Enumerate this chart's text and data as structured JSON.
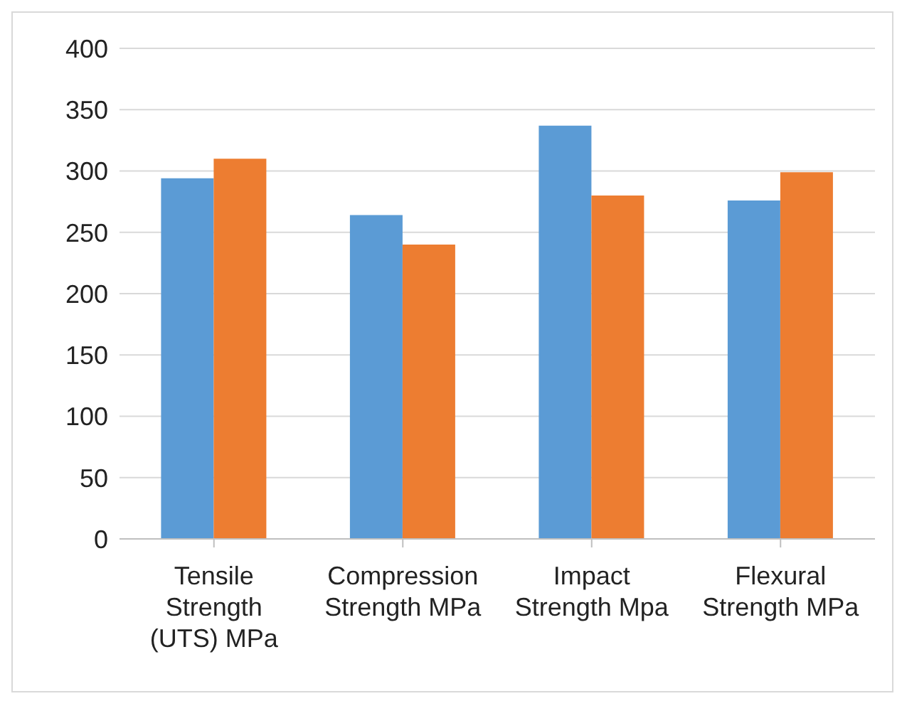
{
  "chart_data": {
    "type": "bar",
    "categories": [
      "Tensile Strength (UTS) MPa",
      "Compression Strength MPa",
      "Impact Strength Mpa",
      "Flexural Strength MPa"
    ],
    "series": [
      {
        "color": "#5b9bd5",
        "values": [
          294,
          264,
          337,
          276
        ]
      },
      {
        "color": "#ed7d31",
        "values": [
          310,
          240,
          280,
          299
        ]
      }
    ],
    "ylim": [
      0,
      400
    ],
    "yticks": [
      0,
      50,
      100,
      150,
      200,
      250,
      300,
      350,
      400
    ],
    "grid": "y",
    "legend": false
  }
}
